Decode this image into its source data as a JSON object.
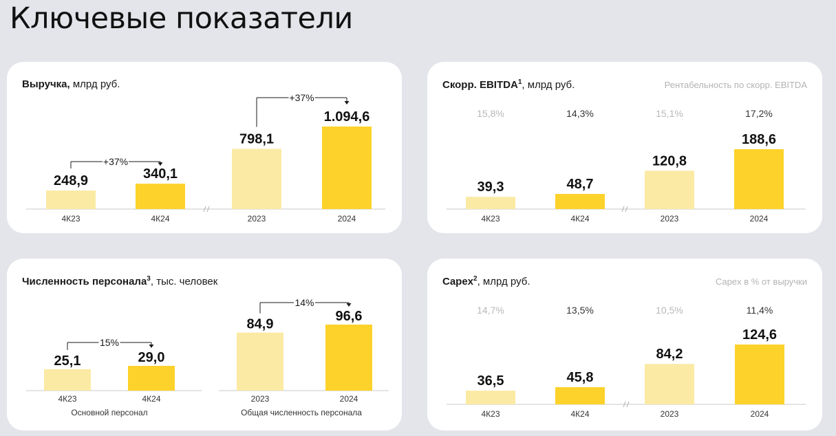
{
  "page_title": "Ключевые показатели",
  "colors": {
    "light": "#fbeaa4",
    "bright": "#fdd22a",
    "line": "#c8c8c8"
  },
  "cards": [
    {
      "title_bold": "Выручка,",
      "title_sup": "",
      "title_rest": " млрд руб.",
      "legend": ""
    },
    {
      "title_bold": "Скорр. EBITDA",
      "title_sup": "1",
      "title_rest": ", млрд руб.",
      "legend": "Рентабельность по скорр. EBITDA"
    },
    {
      "title_bold": "Численность персонала",
      "title_sup": "3",
      "title_rest": ", тыс. человек",
      "legend": ""
    },
    {
      "title_bold": "Capex",
      "title_sup": "2",
      "title_rest": ", млрд руб.",
      "legend": "Capex в % от выручки"
    }
  ],
  "chart_data": [
    {
      "type": "bar",
      "title": "Выручка, млрд руб.",
      "categories": [
        "4К23",
        "4К24",
        "2023",
        "2024"
      ],
      "values": [
        248.9,
        340.1,
        798.1,
        1094.6
      ],
      "value_labels": [
        "248,9",
        "340,1",
        "798,1",
        "1.094,6"
      ],
      "growth": [
        "+37%",
        "+37%"
      ],
      "axis_break": true
    },
    {
      "type": "bar",
      "title": "Скорр. EBITDA¹, млрд руб.",
      "categories": [
        "4К23",
        "4К24",
        "2023",
        "2024"
      ],
      "values": [
        39.3,
        48.7,
        120.8,
        188.6
      ],
      "value_labels": [
        "39,3",
        "48,7",
        "120,8",
        "188,6"
      ],
      "margins": [
        "15,8%",
        "14,3%",
        "15,1%",
        "17,2%"
      ],
      "axis_break": true
    },
    {
      "type": "bar",
      "title": "Численность персонала³, тыс. человек",
      "groups": [
        {
          "caption": "Основной персонал",
          "categories": [
            "4К23",
            "4К24"
          ],
          "values": [
            25.1,
            29.0
          ],
          "value_labels": [
            "25,1",
            "29,0"
          ],
          "growth": "15%"
        },
        {
          "caption": "Общая численность персонала",
          "categories": [
            "2023",
            "2024"
          ],
          "values": [
            84.9,
            96.6
          ],
          "value_labels": [
            "84,9",
            "96,6"
          ],
          "growth": "14%"
        }
      ]
    },
    {
      "type": "bar",
      "title": "Capex², млрд руб.",
      "categories": [
        "4К23",
        "4К24",
        "2023",
        "2024"
      ],
      "values": [
        36.5,
        45.8,
        84.2,
        124.6
      ],
      "value_labels": [
        "36,5",
        "45,8",
        "84,2",
        "124,6"
      ],
      "margins": [
        "14,7%",
        "13,5%",
        "10,5%",
        "11,4%"
      ],
      "axis_break": true
    }
  ]
}
